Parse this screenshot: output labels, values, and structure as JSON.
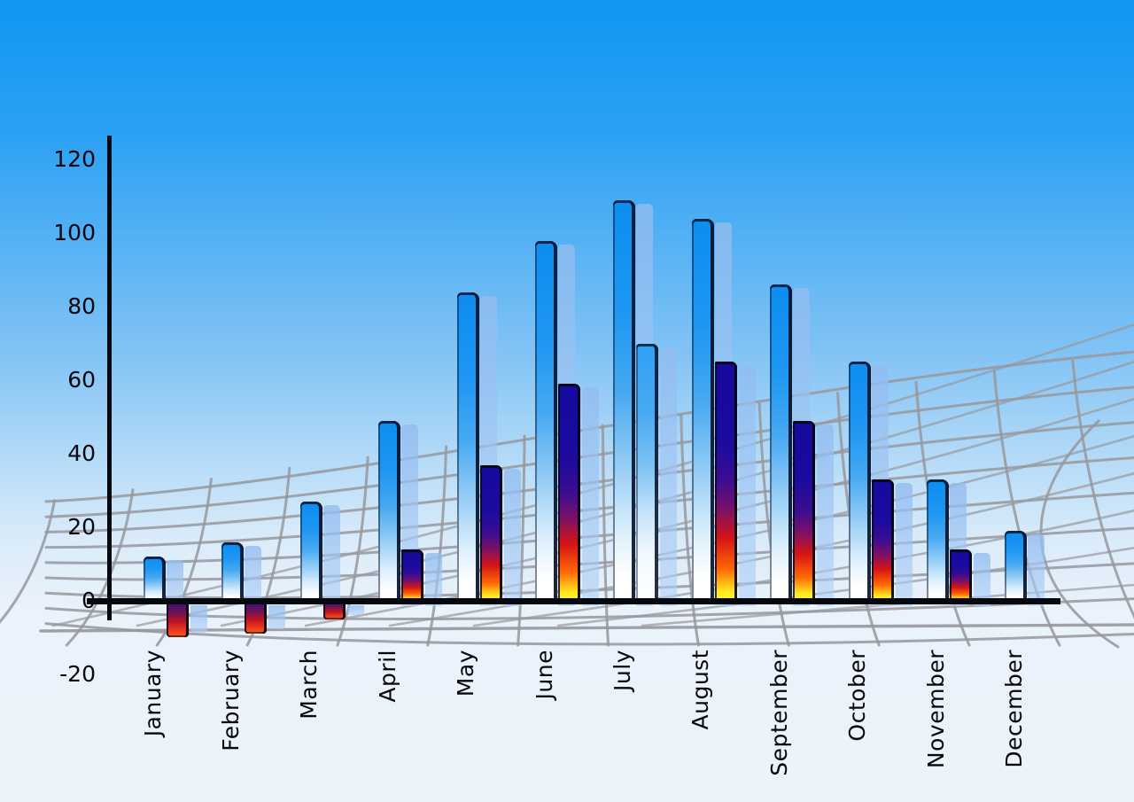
{
  "chart_data": {
    "type": "bar",
    "title": "",
    "xlabel": "",
    "ylabel": "",
    "categories": [
      "January",
      "February",
      "March",
      "April",
      "May",
      "June",
      "July",
      "August",
      "September",
      "October",
      "November",
      "December"
    ],
    "series": [
      {
        "name": "primary-blue-bars",
        "values": [
          12,
          16,
          27,
          49,
          84,
          98,
          109,
          104,
          86,
          65,
          33,
          19
        ]
      },
      {
        "name": "secondary-bars",
        "values": [
          -10,
          -9,
          -5,
          14,
          37,
          59,
          70,
          65,
          49,
          33,
          14,
          null
        ]
      }
    ],
    "secondary_bar_styles": [
      "fire",
      "fire",
      "fire",
      "fire",
      "fire",
      "fire",
      "blue",
      "fire",
      "fire",
      "fire",
      "fire",
      "none"
    ],
    "ylim": [
      -20,
      120
    ],
    "yticks": [
      120,
      100,
      80,
      60,
      40,
      20,
      0,
      -20
    ],
    "grid": "curved gray perspective net behind bars",
    "legend_position": "none",
    "notes": "each bar casts a translucent light-blue offset shadow copy; negative fire bars hang below the zero baseline for Jan-Mar"
  },
  "colors": {
    "sky_top": "#0f97f3",
    "sky_bottom": "#edf3fa",
    "bar_blue_top": "#0c8df0",
    "bar_blue_bottom": "#ffffff",
    "bar_fire_top": "#150a9e",
    "bar_fire_mid": "#d61414",
    "bar_fire_bottom": "#fff43a",
    "bar_shadow": "#9ac2f0",
    "grid_line": "#97989c",
    "axis": "#06080f",
    "label_text": "#05070d"
  }
}
